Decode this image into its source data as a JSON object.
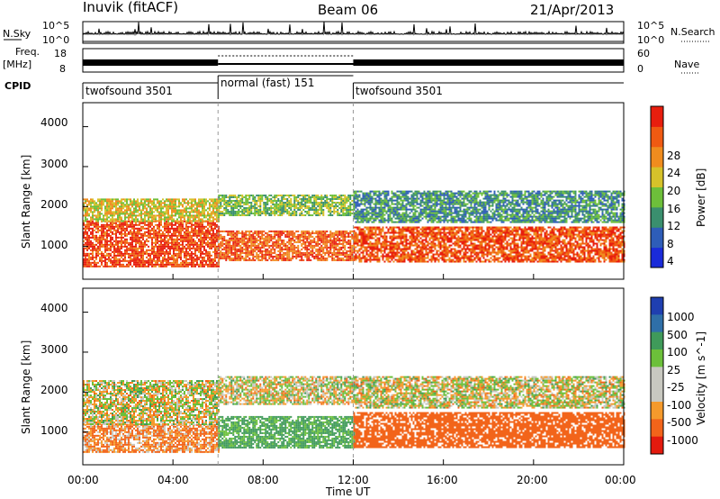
{
  "header": {
    "station": "Inuvik (fitACF)",
    "beam": "Beam 06",
    "date": "21/Apr/2013"
  },
  "aux": {
    "nsky_label": "N.Sky",
    "nsky_ticks": [
      "10^5",
      "10^0"
    ],
    "nsearch_label": "N.Search",
    "nsearch_ticks": [
      "10^5",
      "10^0"
    ],
    "freq_label": "Freq.",
    "freq_unit": "[MHz]",
    "freq_ticks": [
      "18",
      "8"
    ],
    "nave_label": "Nave",
    "nave_ticks": [
      "60",
      "0"
    ],
    "cpid_label": "CPID",
    "cpid_segments": [
      {
        "name": "twofsound 3501",
        "start_hour": 0,
        "end_hour": 6
      },
      {
        "name": "normal (fast) 151",
        "start_hour": 6,
        "end_hour": 12
      },
      {
        "name": "twofsound 3501",
        "start_hour": 12,
        "end_hour": 24
      }
    ]
  },
  "colors": {
    "power_scale": [
      "#1a2bd9",
      "#2e5db8",
      "#3a8f6e",
      "#6dbf3a",
      "#d6c22a",
      "#f08c1e",
      "#f05a12",
      "#e81e0e"
    ],
    "velocity_scale": [
      "#e31a0e",
      "#f2641a",
      "#f59a2c",
      "#c8c8c0",
      "#c8c8c0",
      "#6cc03a",
      "#3f9a5a",
      "#2f6fa8",
      "#1f3fb0"
    ]
  },
  "chart_data": [
    {
      "type": "heatmap",
      "name": "power",
      "xlabel": "",
      "ylabel": "Slant Range [km]",
      "xlim_hours": [
        0,
        24
      ],
      "ylim_km": [
        180,
        4600
      ],
      "yticks": [
        "1000",
        "2000",
        "3000",
        "4000"
      ],
      "colorbar": {
        "label": "Power [dB]",
        "ticks": [
          "4",
          "8",
          "12",
          "16",
          "20",
          "24",
          "28"
        ],
        "range": [
          0,
          32
        ]
      },
      "bands": [
        {
          "hours": [
            0,
            6
          ],
          "km": [
            500,
            1650
          ],
          "level_db": 28
        },
        {
          "hours": [
            0,
            6
          ],
          "km": [
            1650,
            2200
          ],
          "level_db": 18
        },
        {
          "hours": [
            6,
            12
          ],
          "km": [
            650,
            1400
          ],
          "level_db": 26
        },
        {
          "hours": [
            6,
            12
          ],
          "km": [
            1800,
            2300
          ],
          "level_db": 14
        },
        {
          "hours": [
            12,
            24
          ],
          "km": [
            600,
            1500
          ],
          "level_db": 27
        },
        {
          "hours": [
            12,
            24
          ],
          "km": [
            1600,
            2400
          ],
          "level_db": 10
        }
      ]
    },
    {
      "type": "heatmap",
      "name": "velocity",
      "xlabel": "Time UT",
      "ylabel": "Slant Range [km]",
      "xlim_hours": [
        0,
        24
      ],
      "ylim_km": [
        180,
        4600
      ],
      "xticks": [
        "00:00",
        "04:00",
        "08:00",
        "12:00",
        "16:00",
        "20:00",
        "00:00"
      ],
      "yticks": [
        "1000",
        "2000",
        "3000",
        "4000"
      ],
      "colorbar": {
        "label": "Velocity [m s^-1]",
        "ticks": [
          "1000",
          "500",
          "100",
          "25",
          "-25",
          "-100",
          "-500",
          "-1000"
        ]
      },
      "bands": [
        {
          "hours": [
            0,
            6
          ],
          "km": [
            500,
            1200
          ],
          "velocity": -100
        },
        {
          "hours": [
            0,
            6
          ],
          "km": [
            1200,
            2300
          ],
          "velocity": 0
        },
        {
          "hours": [
            6,
            12
          ],
          "km": [
            600,
            1400
          ],
          "velocity": 150
        },
        {
          "hours": [
            6,
            12
          ],
          "km": [
            1700,
            2400
          ],
          "velocity": 0
        },
        {
          "hours": [
            12,
            24
          ],
          "km": [
            600,
            1500
          ],
          "velocity": -300
        },
        {
          "hours": [
            12,
            24
          ],
          "km": [
            1600,
            2400
          ],
          "velocity": 0
        }
      ]
    }
  ]
}
